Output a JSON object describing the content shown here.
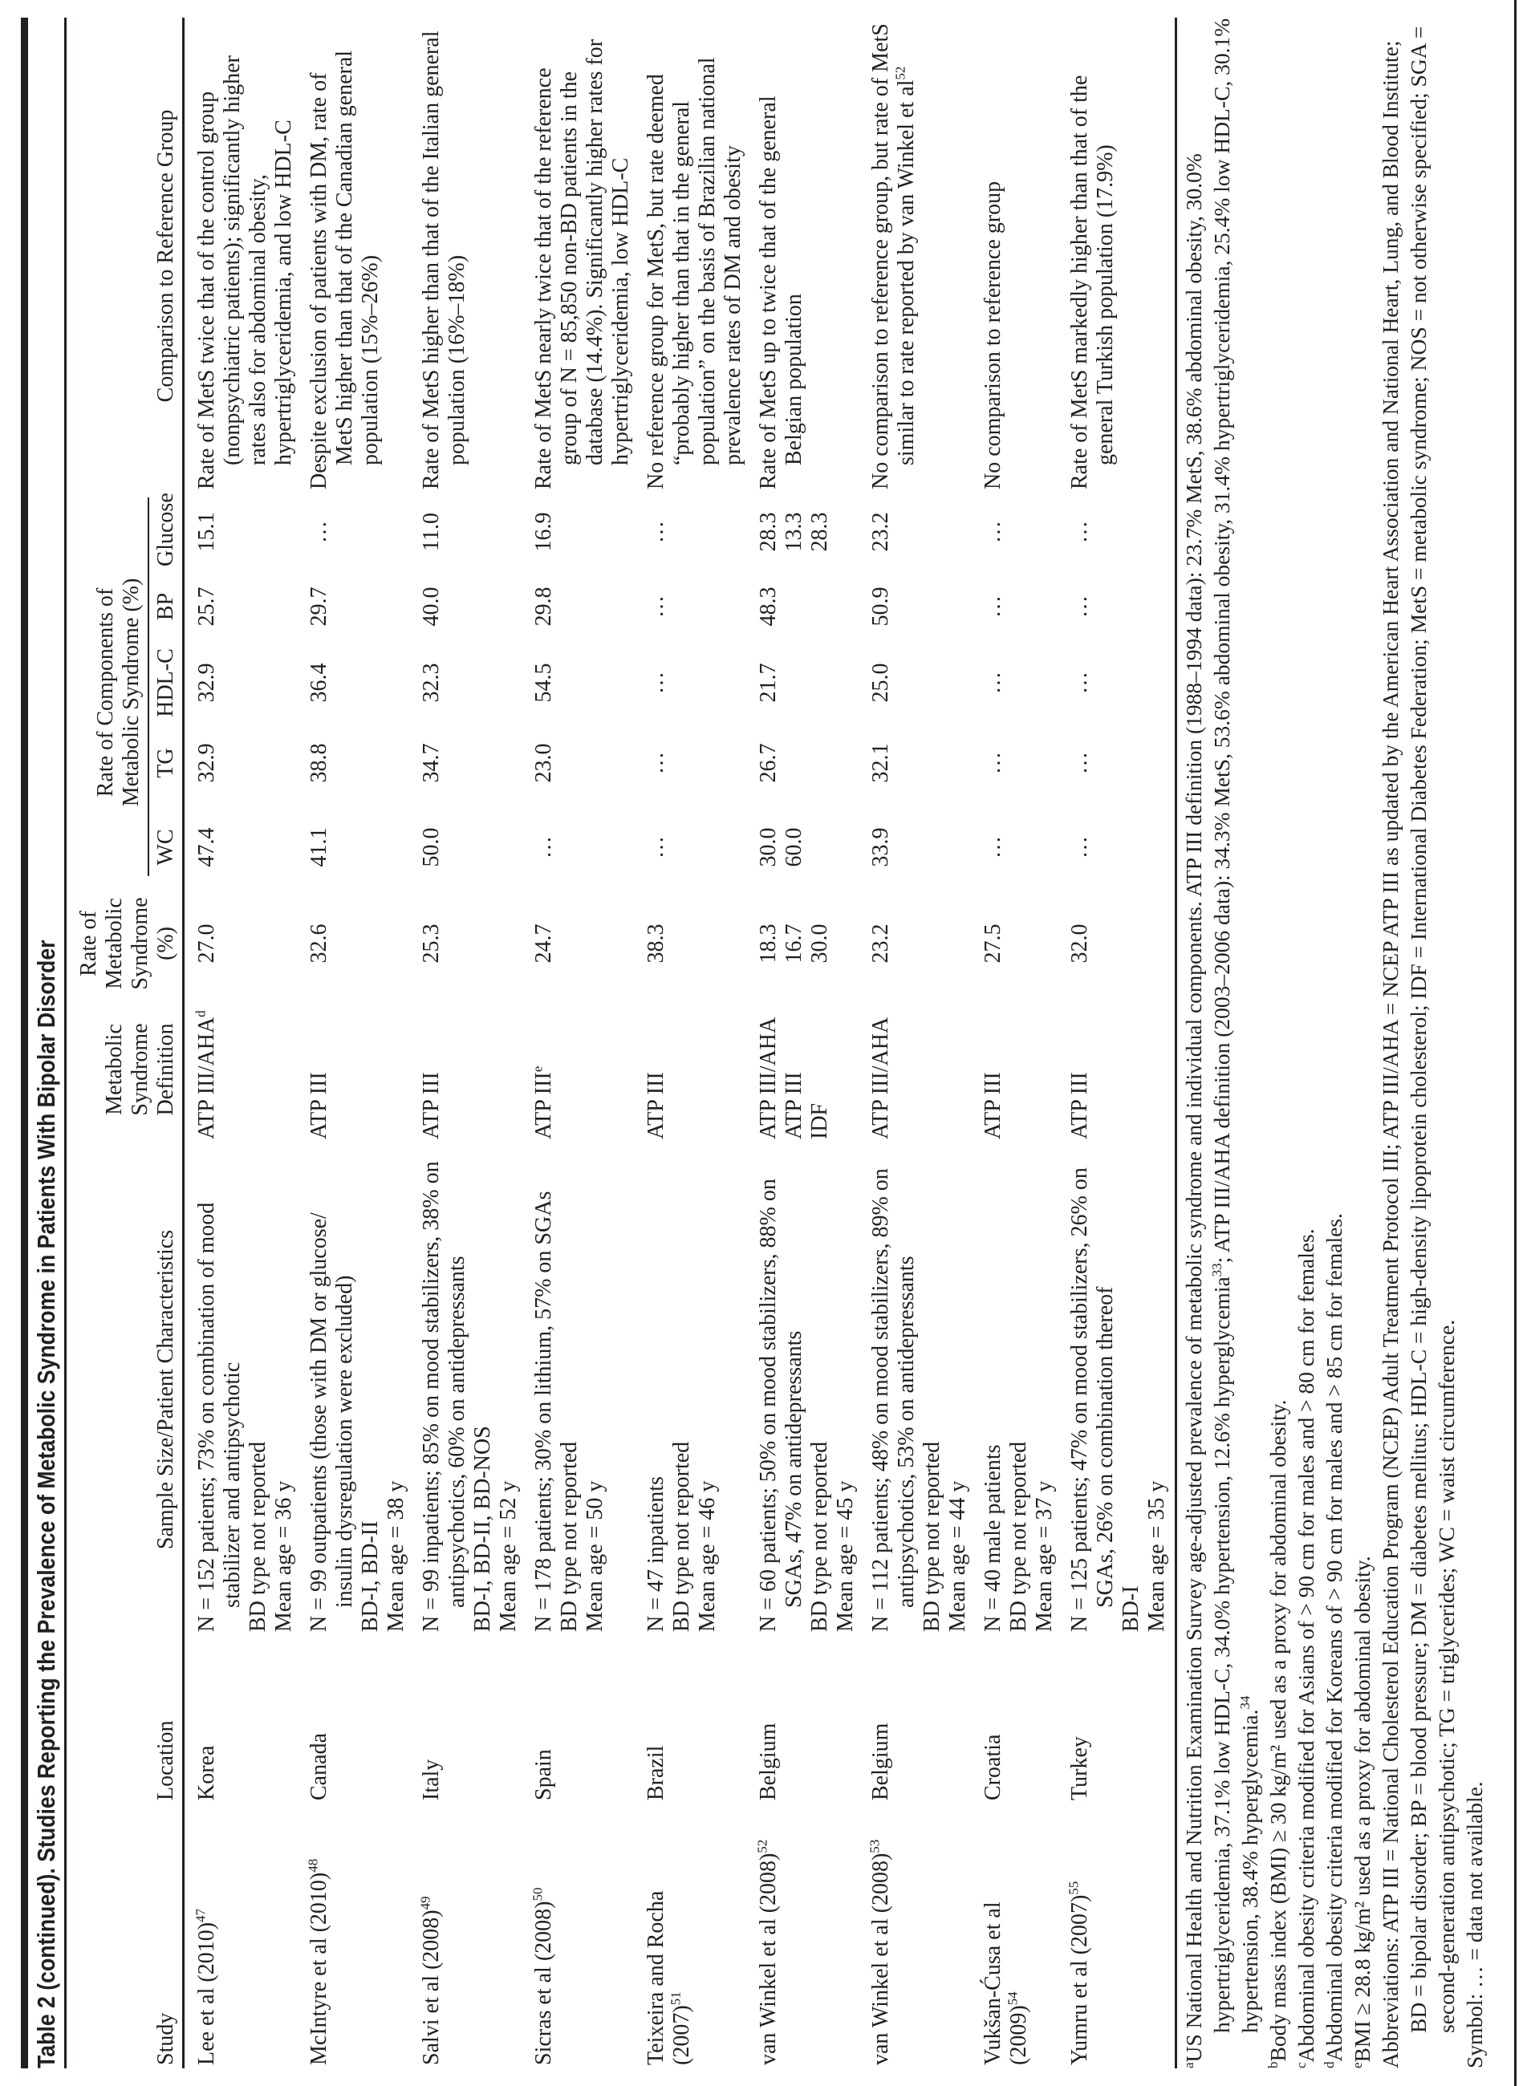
{
  "title": "Table 2 (continued). Studies Reporting the Prevalence of Metabolic Syndrome in Patients With Bipolar Disorder",
  "headers": {
    "study": "Study",
    "location": "Location",
    "sample": "Sample Size/Patient Characteristics",
    "definition": "Metabolic Syndrome Definition",
    "rate": "Rate of Metabolic Syndrome (%)",
    "components": "Rate of Components of Metabolic Syndrome (%)",
    "wc": "WC",
    "tg": "TG",
    "hdl": "HDL-C",
    "bp": "BP",
    "glucose": "Glucose",
    "comparison": "Comparison to Reference Group"
  },
  "rows": [
    {
      "study": "Lee et al (2010)",
      "ref": "47",
      "location": "Korea",
      "sample": [
        "N = 152 patients; 73% on combination of mood stabilizer and antipsychotic",
        "BD type not reported",
        "Mean age = 36 y"
      ],
      "definition": "ATP III/AHA",
      "def_sup": "d",
      "rate": "27.0",
      "wc": "47.4",
      "tg": "32.9",
      "hdl": "32.9",
      "bp": "25.7",
      "glucose": "15.1",
      "comparison": "Rate of MetS twice that of the control group (nonpsychiatric patients); significantly higher rates also for abdominal obesity, hypertriglyceridemia, and low HDL-C",
      "comp_sup": ""
    },
    {
      "study": "McIntyre et al (2010)",
      "ref": "48",
      "location": "Canada",
      "sample": [
        "N = 99 outpatients (those with DM or glucose/ insulin dysregulation were excluded)",
        "BD-I, BD-II",
        "Mean age = 38 y"
      ],
      "definition": "ATP III",
      "def_sup": "",
      "rate": "32.6",
      "wc": "41.1",
      "tg": "38.8",
      "hdl": "36.4",
      "bp": "29.7",
      "glucose": "…",
      "comparison": "Despite exclusion of patients with DM, rate of MetS higher than that of the Canadian general population (15%–26%)",
      "comp_sup": ""
    },
    {
      "study": "Salvi et al (2008)",
      "ref": "49",
      "location": "Italy",
      "sample": [
        "N = 99 inpatients; 85% on mood stabilizers, 38% on antipsychotics, 60% on antidepressants",
        "BD-I, BD-II, BD-NOS",
        "Mean age = 52 y"
      ],
      "definition": "ATP III",
      "def_sup": "",
      "rate": "25.3",
      "wc": "50.0",
      "tg": "34.7",
      "hdl": "32.3",
      "bp": "40.0",
      "glucose": "11.0",
      "comparison": "Rate of MetS higher than that of the Italian general population (16%–18%)",
      "comp_sup": ""
    },
    {
      "study": "Sicras et al (2008)",
      "ref": "50",
      "location": "Spain",
      "sample": [
        "N = 178 patients; 30% on lithium, 57% on SGAs",
        "BD type not reported",
        "Mean age = 50 y"
      ],
      "definition": "ATP III",
      "def_sup": "e",
      "rate": "24.7",
      "wc": "…",
      "tg": "23.0",
      "hdl": "54.5",
      "bp": "29.8",
      "glucose": "16.9",
      "comparison": "Rate of MetS nearly twice that of the reference group of N = 85,850 non-BD patients in the database (14.4%). Significantly higher rates for hypertriglyceridemia, low HDL-C",
      "comp_sup": ""
    },
    {
      "study": "Teixeira and Rocha\n(2007)",
      "ref": "51",
      "location": "Brazil",
      "sample": [
        "N = 47 inpatients",
        "BD type not reported",
        "Mean age = 46 y"
      ],
      "definition": "ATP III",
      "def_sup": "",
      "rate": "38.3",
      "wc": "…",
      "tg": "…",
      "hdl": "…",
      "bp": "…",
      "glucose": "…",
      "comparison": "No reference group for MetS, but rate deemed “probably higher than that in the general population” on the basis of Brazilian national prevalence rates of DM and obesity",
      "comp_sup": ""
    },
    {
      "study": "van Winkel et al (2008)",
      "ref": "52",
      "location": "Belgium",
      "sample": [
        "N = 60 patients; 50% on mood stabilizers, 88% on SGAs, 47% on antidepressants",
        "BD type not reported",
        "Mean age = 45 y"
      ],
      "definition": "ATP III/AHA\nATP III\nIDF",
      "def_sup": "",
      "rate": "18.3\n16.7\n30.0",
      "wc": "30.0\n60.0",
      "tg": "26.7",
      "hdl": "21.7",
      "bp": "48.3",
      "glucose": "28.3\n13.3\n28.3",
      "comparison": "Rate of MetS up to twice that of the general Belgian population",
      "comp_sup": ""
    },
    {
      "study": "van Winkel et al (2008)",
      "ref": "53",
      "location": "Belgium",
      "sample": [
        "N = 112 patients; 48% on mood stabilizers, 89% on antipsychotics, 53% on antidepressants",
        "BD type not reported",
        "Mean age = 44 y"
      ],
      "definition": "ATP III/AHA",
      "def_sup": "",
      "rate": "23.2",
      "wc": "33.9",
      "tg": "32.1",
      "hdl": "25.0",
      "bp": "50.9",
      "glucose": "23.2",
      "comparison": "No comparison to reference group, but rate of MetS similar to rate reported by van Winkel et al",
      "comp_sup": "52"
    },
    {
      "study": "Vukšan-Ćusa et al\n(2009)",
      "ref": "54",
      "location": "Croatia",
      "sample": [
        "N = 40 male patients",
        "BD type not reported",
        "Mean age = 37 y"
      ],
      "definition": "ATP III",
      "def_sup": "",
      "rate": "27.5",
      "wc": "…",
      "tg": "…",
      "hdl": "…",
      "bp": "…",
      "glucose": "…",
      "comparison": "No comparison to reference group",
      "comp_sup": ""
    },
    {
      "study": "Yumru et al (2007)",
      "ref": "55",
      "location": "Turkey",
      "sample": [
        "N = 125 patients; 47% on mood stabilizers, 26% on SGAs, 26% on combination thereof",
        "BD-I",
        "Mean age = 35 y"
      ],
      "definition": "ATP III",
      "def_sup": "",
      "rate": "32.0",
      "wc": "…",
      "tg": "…",
      "hdl": "…",
      "bp": "…",
      "glucose": "…",
      "comparison": "Rate of MetS markedly higher than that of the general Turkish population (17.9%)",
      "comp_sup": ""
    }
  ],
  "footnotes": {
    "a": {
      "mark": "a",
      "text1": "US National Health and Nutrition Examination Survey age-adjusted prevalence of metabolic syndrome and individual components. ATP III definition (1988–1994 data): 23.7% MetS, 38.6% abdominal obesity, 30.0% hypertriglyceridemia, 37.1% low HDL-C, 34.0% hypertension, 12.6% hyperglycemia",
      "sup1": "33",
      "text2": "; ATP III/AHA definition (2003–2006 data): 34.3% MetS, 53.6% abdominal obesity, 31.4% hypertriglyceridemia, 25.4% low HDL-C, 30.1% hypertension, 38.4% hyperglycemia.",
      "sup2": "34"
    },
    "b": {
      "mark": "b",
      "text": "Body mass index (BMI) ≥ 30 kg/m² used as a proxy for abdominal obesity."
    },
    "c": {
      "mark": "c",
      "text": "Abdominal obesity criteria modified for Asians of > 90 cm for males and > 80 cm for females."
    },
    "d": {
      "mark": "d",
      "text": "Abdominal obesity criteria modified for Koreans of > 90 cm for males and > 85 cm for females."
    },
    "e": {
      "mark": "e",
      "text": "BMI ≥ 28.8 kg/m² used as a proxy for abdominal obesity."
    },
    "abbreviations": "Abbreviations: ATP III = National Cholesterol Education Program (NCEP) Adult Treatment Protocol III; ATP III/AHA = NCEP ATP III as updated by the American Heart Association and National Heart, Lung, and Blood Institute; BD = bipolar disorder; BP = blood pressure; DM = diabetes mellitus; HDL-C = high-density lipoprotein cholesterol; IDF = International Diabetes Federation; MetS = metabolic syndrome; NOS = not otherwise specified; SGA = second-generation antipsychotic; TG = triglycerides; WC = waist circumference.",
    "symbol": "Symbol: … = data not available."
  }
}
